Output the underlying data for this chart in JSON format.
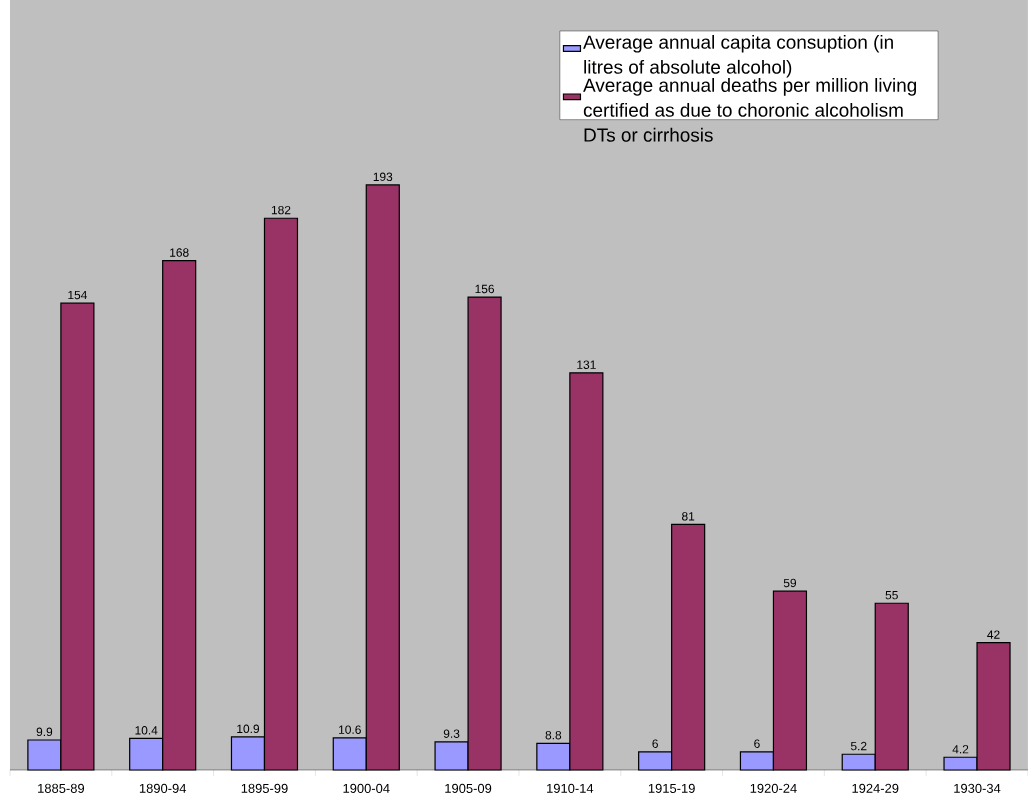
{
  "chart_data": {
    "type": "bar",
    "categories": [
      "1885-89",
      "1890-94",
      "1895-99",
      "1900-04",
      "1905-09",
      "1910-14",
      "1915-19",
      "1920-24",
      "1924-29",
      "1930-34"
    ],
    "series": [
      {
        "name": "Average annual capita consuption (in litres of absolute alcohol)",
        "color": "#9999ff",
        "values": [
          9.9,
          10.4,
          10.9,
          10.6,
          9.3,
          8.8,
          6,
          6,
          5.2,
          4.2
        ]
      },
      {
        "name": "Average annual deaths per million living certified as due to choronic alcoholism DTs or cirrhosis",
        "color": "#993366",
        "values": [
          154,
          168,
          182,
          193,
          156,
          131,
          81,
          59,
          55,
          42
        ]
      }
    ],
    "ylim": [
      0,
      254
    ],
    "data_labels": true,
    "legend": "top right"
  }
}
